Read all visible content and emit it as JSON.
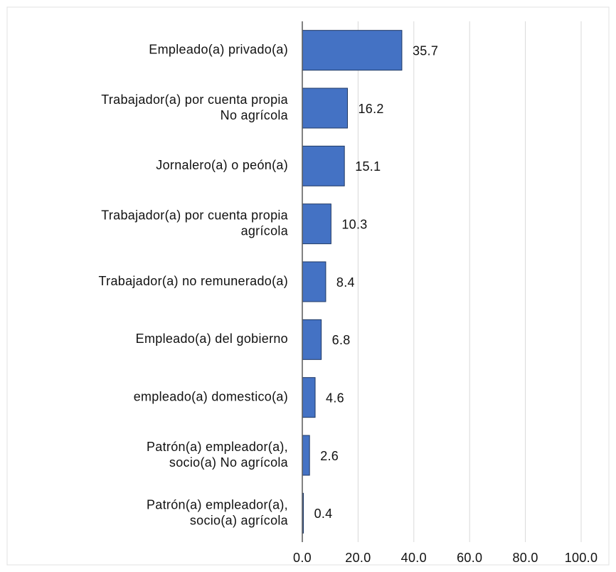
{
  "chart_data": {
    "type": "bar",
    "orientation": "horizontal",
    "categories": [
      "Empleado(a) privado(a)",
      "Trabajador(a) por cuenta propia\nNo agrícola",
      "Jornalero(a) o peón(a)",
      "Trabajador(a) por cuenta propia\nagrícola",
      "Trabajador(a) no remunerado(a)",
      "Empleado(a) del gobierno",
      "empleado(a) domestico(a)",
      "Patrón(a) empleador(a),\nsocio(a) No agrícola",
      "Patrón(a) empleador(a),\nsocio(a) agrícola"
    ],
    "values": [
      35.7,
      16.2,
      15.1,
      10.3,
      8.4,
      6.8,
      4.6,
      2.6,
      0.4
    ],
    "color": "#4472c4",
    "xlim": [
      0,
      100
    ],
    "xticks": [
      {
        "value": 0,
        "label": "0.0"
      },
      {
        "value": 20,
        "label": "20.0"
      },
      {
        "value": 40,
        "label": "40.0"
      },
      {
        "value": 60,
        "label": "60.0"
      },
      {
        "value": 80,
        "label": "80.0"
      },
      {
        "value": 100,
        "label": "100.0"
      }
    ],
    "grid": true
  }
}
